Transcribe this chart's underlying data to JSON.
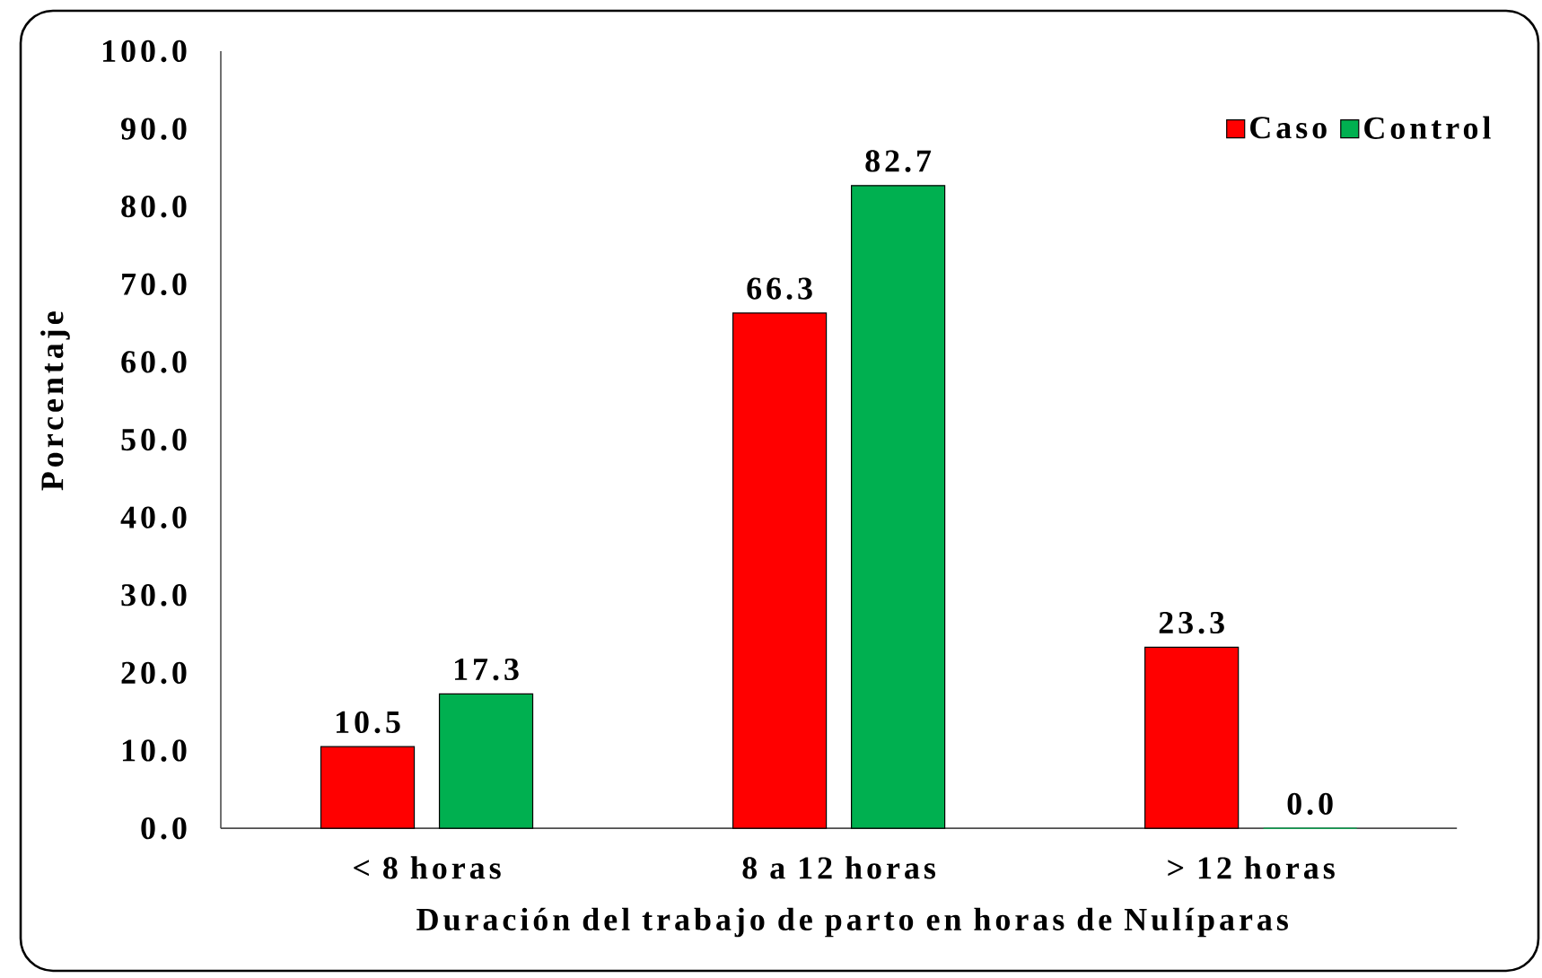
{
  "chart_data": {
    "type": "bar",
    "xlabel": "Duración del trabajo de parto en horas de Nulíparas",
    "ylabel": "Porcentaje",
    "categories": [
      "< 8 horas",
      "8 a 12 horas",
      "> 12 horas"
    ],
    "series": [
      {
        "name": "Caso",
        "color": "#ff0000",
        "values": [
          10.5,
          66.3,
          23.3
        ],
        "value_labels": [
          "10.5",
          "66.3",
          "23.3"
        ]
      },
      {
        "name": "Control",
        "color": "#00b050",
        "values": [
          17.3,
          82.7,
          0.0
        ],
        "value_labels": [
          "17.3",
          "82.7",
          "0.0"
        ]
      }
    ],
    "ylim": [
      0,
      100
    ],
    "yticks": [
      {
        "value": 0,
        "label": "0.0"
      },
      {
        "value": 10,
        "label": "10.0"
      },
      {
        "value": 20,
        "label": "20.0"
      },
      {
        "value": 30,
        "label": "30.0"
      },
      {
        "value": 40,
        "label": "40.0"
      },
      {
        "value": 50,
        "label": "50.0"
      },
      {
        "value": 60,
        "label": "60.0"
      },
      {
        "value": 70,
        "label": "70.0"
      },
      {
        "value": 80,
        "label": "80.0"
      },
      {
        "value": 90,
        "label": "90.0"
      },
      {
        "value": 100,
        "label": "100.0"
      }
    ],
    "legend": "top right"
  }
}
